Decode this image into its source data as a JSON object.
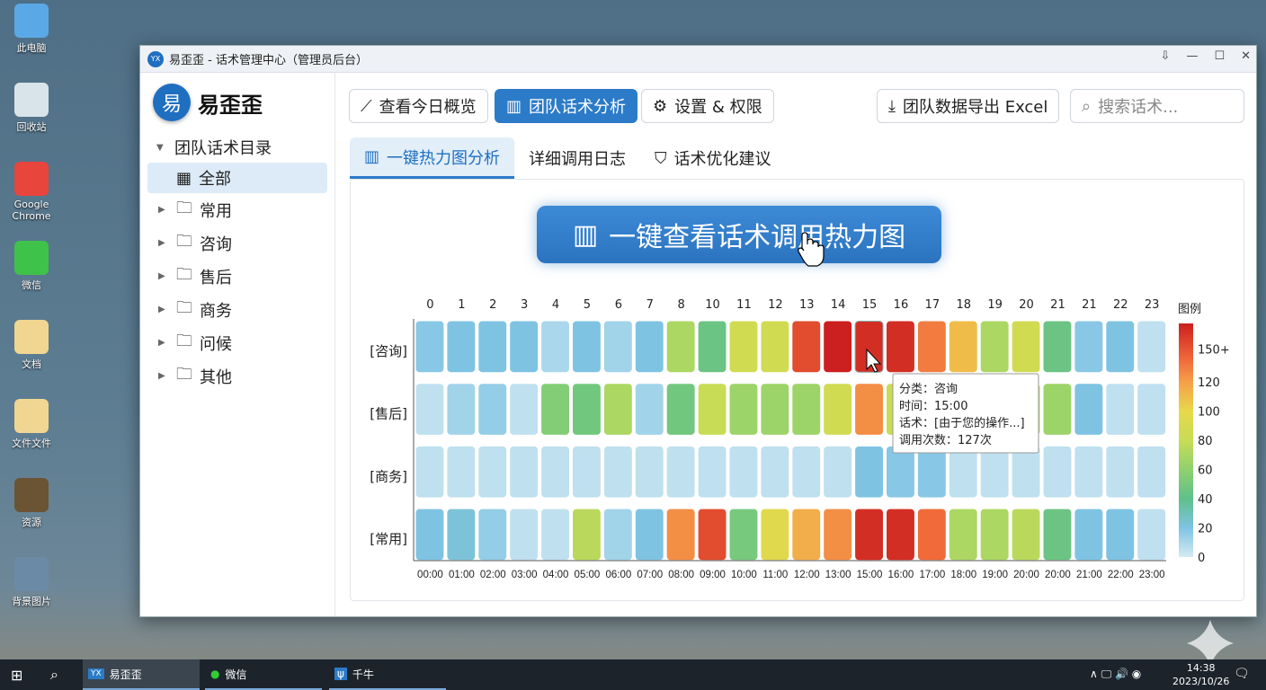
{
  "desktop": {
    "icons": [
      "此电脑",
      "回收站",
      "Google Chrome",
      "微信",
      "文档",
      "文件文件",
      "资源",
      "背景图片"
    ]
  },
  "window": {
    "title": "易歪歪 - 话术管理中心（管理员后台）",
    "logo": "易"
  },
  "sidebar": {
    "brand": "易歪歪",
    "root": "团队话术目录",
    "items": [
      {
        "label": "全部",
        "selected": true
      },
      {
        "label": "常用"
      },
      {
        "label": "咨询"
      },
      {
        "label": "售后"
      },
      {
        "label": "商务"
      },
      {
        "label": "问候"
      },
      {
        "label": "其他"
      }
    ]
  },
  "toolbar": {
    "overview": "查看今日概览",
    "analysis": "团队话术分析",
    "settings": "设置 & 权限",
    "export": "团队数据导出 Excel",
    "search_placeholder": "搜索话术..."
  },
  "tabs": [
    "一键热力图分析",
    "详细调用日志",
    "话术优化建议"
  ],
  "big_button": "一键查看话术调用热力图",
  "tooltip": {
    "category": "分类：咨询",
    "time": "时间：15:00",
    "script": "话术：[由于您的操作...]",
    "count": "调用次数：127次"
  },
  "chart_data": {
    "type": "heatmap",
    "x_top": [
      "0",
      "1",
      "2",
      "3",
      "4",
      "5",
      "6",
      "7",
      "8",
      "10",
      "11",
      "12",
      "13",
      "14",
      "15",
      "16",
      "17",
      "18",
      "19",
      "20",
      "21",
      "21",
      "22",
      "23"
    ],
    "x_bottom": [
      "00:00",
      "01:00",
      "02:00",
      "03:00",
      "04:00",
      "05:00",
      "06:00",
      "07:00",
      "08:00",
      "09:00",
      "10:00",
      "11:00",
      "12:00",
      "13:00",
      "15:00",
      "16:00",
      "17:00",
      "18:00",
      "19:00",
      "20:00",
      "20:00",
      "21:00",
      "22:00",
      "23:00"
    ],
    "rows": [
      "[咨询]",
      "[售后]",
      "[商务]",
      "[常用]"
    ],
    "values": [
      [
        18,
        20,
        20,
        20,
        10,
        20,
        12,
        20,
        70,
        45,
        85,
        85,
        145,
        160,
        155,
        155,
        130,
        110,
        70,
        85,
        45,
        18,
        20,
        5
      ],
      [
        5,
        12,
        15,
        5,
        55,
        48,
        70,
        12,
        48,
        80,
        65,
        65,
        65,
        85,
        125,
        80,
        90,
        110,
        60,
        70,
        65,
        20,
        5,
        5
      ],
      [
        5,
        5,
        5,
        5,
        5,
        5,
        5,
        5,
        5,
        5,
        5,
        5,
        5,
        5,
        20,
        18,
        18,
        5,
        5,
        5,
        5,
        5,
        5,
        5
      ],
      [
        20,
        22,
        15,
        5,
        5,
        75,
        12,
        20,
        125,
        145,
        50,
        95,
        115,
        125,
        155,
        155,
        135,
        70,
        70,
        75,
        45,
        20,
        20,
        5
      ]
    ],
    "legend": {
      "title": "图例",
      "ticks": [
        "0",
        "20",
        "40",
        "60",
        "80",
        "100",
        "120",
        "150+"
      ],
      "range": [
        0,
        160
      ]
    }
  },
  "taskbar": {
    "apps": [
      "易歪歪",
      "微信",
      "千牛"
    ],
    "time": "14:38",
    "date": "2023/10/26"
  }
}
